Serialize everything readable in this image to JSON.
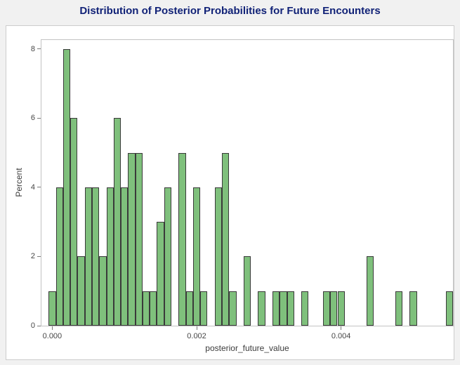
{
  "page": {
    "background_color": "#f1f1f1"
  },
  "title": {
    "text": "Distribution of Posterior Probabilities for Future Encounters",
    "color": "#112277"
  },
  "chart_data": {
    "type": "bar",
    "subtype": "histogram",
    "title": "Distribution of Posterior Probabilities for Future Encounters",
    "xlabel": "posterior_future_value",
    "ylabel": "Percent",
    "x_tick_labels": [
      "0.000",
      "0.002",
      "0.004"
    ],
    "x_tick_values": [
      0.0,
      0.002,
      0.004
    ],
    "y_tick_labels": [
      "0",
      "2",
      "4",
      "6",
      "8"
    ],
    "y_tick_values": [
      0,
      2,
      4,
      6,
      8
    ],
    "xlim": [
      -0.00015,
      0.00555
    ],
    "ylim": [
      0,
      8.26
    ],
    "grid": false,
    "legend": "none",
    "bin_width": 0.0001,
    "first_bin_center": 0.0,
    "n_bins": 56,
    "percent_values": [
      1,
      4,
      8,
      6,
      2,
      4,
      4,
      2,
      4,
      6,
      4,
      5,
      5,
      1,
      1,
      3,
      4,
      0,
      5,
      1,
      4,
      1,
      0,
      4,
      5,
      1,
      0,
      2,
      0,
      1,
      0,
      1,
      1,
      1,
      0,
      1,
      0,
      0,
      1,
      1,
      1,
      0,
      0,
      0,
      2,
      0,
      0,
      0,
      1,
      0,
      1,
      0,
      0,
      0,
      0,
      1
    ],
    "colors": {
      "bar_fill": "#7fc07c",
      "bar_stroke": "#3a3a3a",
      "axis_frame": "#c3c3c3",
      "tick_mark": "#7a7a7a",
      "tick_text": "#464646"
    }
  }
}
